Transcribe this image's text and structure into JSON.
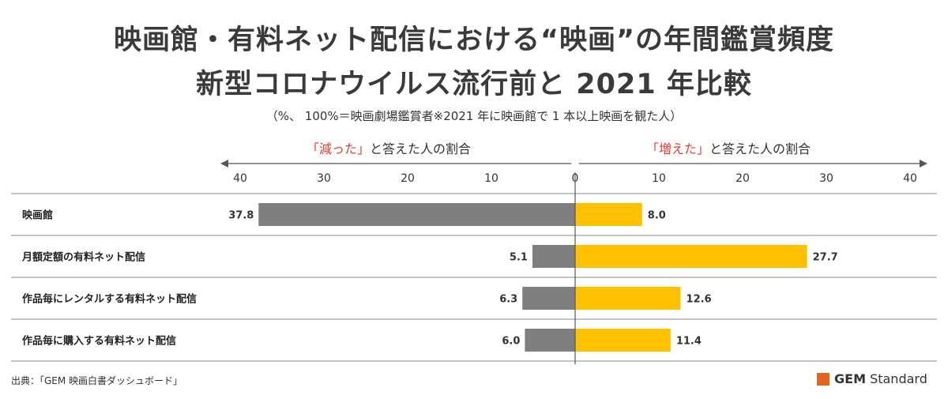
{
  "title_line1": "映画館・有料ネット配信における“映画”の年間鑑賞頻度",
  "title_line2": "新型コロナウイルス流行前と 2021 年比較",
  "subtitle": "（%、 100%＝映画劇場鑑賞者※2021 年に映画館で 1 本以上映画を観た人）",
  "direction_left": {
    "quote_open": "「",
    "key": "減った",
    "quote_close": "」",
    "rest": "と答えた人の割合"
  },
  "direction_right": {
    "quote_open": "「",
    "key": "増えた",
    "quote_close": "」",
    "rest": "と答えた人の割合"
  },
  "source": "出典：「GEM 映画白書ダッシュボード」",
  "brand": {
    "bold": "GEM",
    "rest": " Standard",
    "color": "#e2641e"
  },
  "chart_data": {
    "type": "bar",
    "orientation": "horizontal-diverging",
    "categories": [
      "映画館",
      "月額定額の有料ネット配信",
      "作品毎にレンタルする有料ネット配信",
      "作品毎に購入する有料ネット配信"
    ],
    "series": [
      {
        "name": "減った",
        "values": [
          37.8,
          5.1,
          6.3,
          6.0
        ],
        "labels": [
          "37.8",
          "5.1",
          "6.3",
          "6.0"
        ],
        "color": "#7f7f7f",
        "side": "left"
      },
      {
        "name": "増えた",
        "values": [
          8.0,
          27.7,
          12.6,
          11.4
        ],
        "labels": [
          "8.0",
          "27.7",
          "12.6",
          "11.4"
        ],
        "color": "#ffc000",
        "side": "right"
      }
    ],
    "ticks_left": [
      "40",
      "30",
      "20",
      "10"
    ],
    "tick_zero": "0",
    "ticks_right": [
      "10",
      "20",
      "30",
      "40"
    ],
    "xlim": [
      0,
      40
    ],
    "grid": false
  }
}
